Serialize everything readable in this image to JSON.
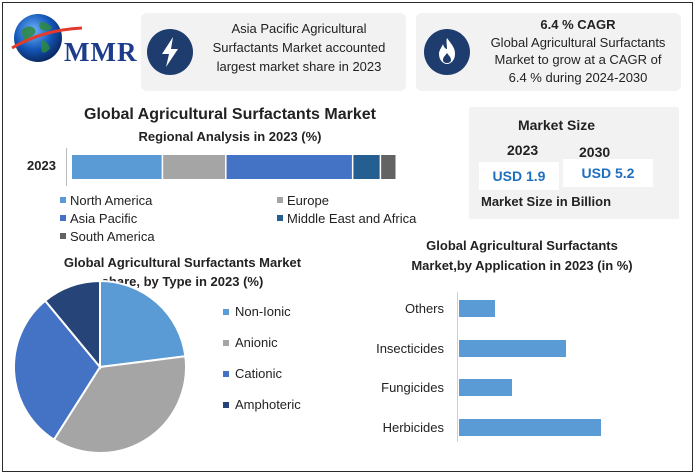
{
  "logo": {
    "text": "MMR"
  },
  "card1": {
    "text_lines": [
      "Asia Pacific Agricultural",
      "Surfactants Market accounted",
      "largest market share in 2023"
    ]
  },
  "card2": {
    "title": "6.4 % CAGR",
    "text_lines": [
      "Global Agricultural Surfactants",
      "Market to grow at a CAGR of",
      "6.4 % during 2024-2030"
    ]
  },
  "regional": {
    "title": "Global Agricultural Surfactants Market",
    "subtitle": "Regional Analysis in 2023 (%)",
    "year_label": "2023",
    "legend": [
      {
        "label": "North America",
        "color": "#5b9bd5"
      },
      {
        "label": "Europe",
        "color": "#a5a5a5"
      },
      {
        "label": "Asia Pacific",
        "color": "#4472c4"
      },
      {
        "label": "Middle East and Africa",
        "color": "#255e91"
      },
      {
        "label": "South America",
        "color": "#636363"
      }
    ]
  },
  "market_size": {
    "title": "Market Size",
    "year1": "2023",
    "year2": "2030",
    "value1": "USD 1.9",
    "value2": "USD 5.2",
    "footer": "Market Size in Billion"
  },
  "type_share": {
    "title_line1": "Global Agricultural Surfactants Market",
    "title_line2": "share, by Type in 2023  (%)",
    "legend": [
      {
        "label": "Non-Ionic",
        "color": "#5b9bd5"
      },
      {
        "label": "Anionic",
        "color": "#a5a5a5"
      },
      {
        "label": "Cationic",
        "color": "#4472c4"
      },
      {
        "label": "Amphoteric",
        "color": "#264478"
      }
    ]
  },
  "application": {
    "title_line1": "Global Agricultural Surfactants",
    "title_line2": "Market,by Application in 2023 (in %)"
  },
  "chart_data": [
    {
      "type": "bar",
      "orientation": "horizontal-stacked",
      "categories": [
        "2023"
      ],
      "series": [
        {
          "name": "North America",
          "values": [
            23
          ]
        },
        {
          "name": "Europe",
          "values": [
            16
          ]
        },
        {
          "name": "Asia Pacific",
          "values": [
            32
          ]
        },
        {
          "name": "Middle East and Africa",
          "values": [
            7
          ]
        },
        {
          "name": "South America",
          "values": [
            4
          ]
        }
      ],
      "colors": [
        "#5b9bd5",
        "#a5a5a5",
        "#4472c4",
        "#255e91",
        "#636363"
      ],
      "title": "Global Agricultural Surfactants Market",
      "subtitle": "Regional Analysis in 2023 (%)",
      "legend": "bottom"
    },
    {
      "type": "pie",
      "categories": [
        "Non-Ionic",
        "Anionic",
        "Cationic",
        "Amphoteric"
      ],
      "values": [
        23,
        36,
        30,
        11
      ],
      "colors": [
        "#5b9bd5",
        "#a5a5a5",
        "#4472c4",
        "#264478"
      ],
      "title": "Global Agricultural Surfactants Market share, by Type in 2023  (%)",
      "legend": "right"
    },
    {
      "type": "bar",
      "orientation": "horizontal",
      "categories": [
        "Herbicides",
        "Fungicides",
        "Insecticides",
        "Others"
      ],
      "values": [
        40,
        15,
        30,
        10
      ],
      "color": "#5b9bd5",
      "xlim": [
        0,
        45
      ],
      "grid": false,
      "title": "Global Agricultural Surfactants Market,by Application in 2023 (in %)"
    }
  ]
}
